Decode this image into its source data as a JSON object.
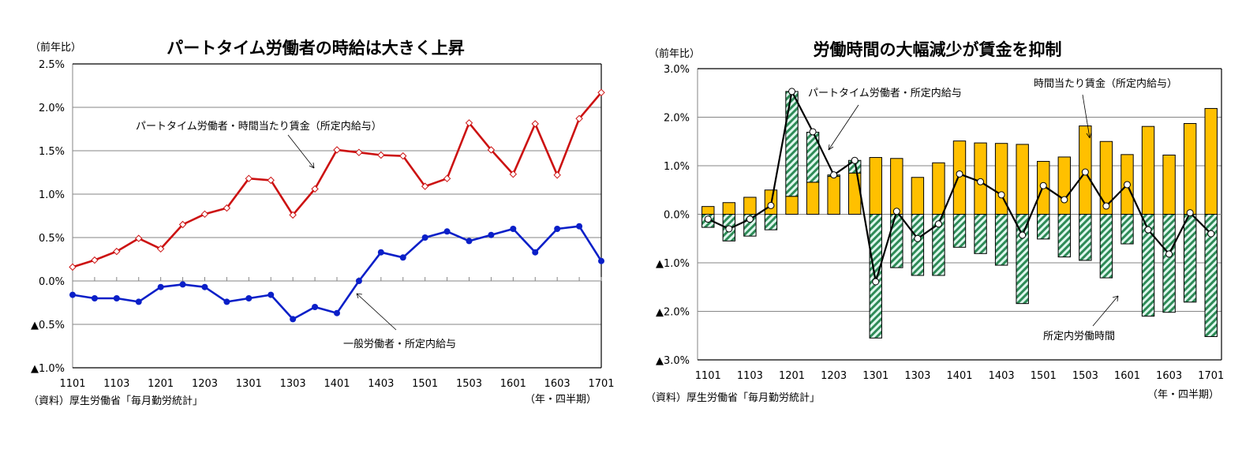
{
  "chart_data": [
    {
      "type": "line",
      "title": "パートタイム労働者の時給は大きく上昇",
      "ylabel": "（前年比）",
      "xlabel": "（年・四半期）",
      "source": "（資料）厚生労働省「毎月勤労統計」",
      "ylim": [
        -1.0,
        2.5
      ],
      "yticks": [
        2.5,
        2.0,
        1.5,
        1.0,
        0.5,
        0.0,
        -0.5,
        -1.0
      ],
      "ytick_labels": [
        "2.5%",
        "2.0%",
        "1.5%",
        "1.0%",
        "0.5%",
        "0.0%",
        "▲0.5%",
        "▲1.0%"
      ],
      "grid": true,
      "x": [
        "1101",
        "1102",
        "1103",
        "1104",
        "1201",
        "1202",
        "1203",
        "1204",
        "1301",
        "1302",
        "1303",
        "1304",
        "1401",
        "1402",
        "1403",
        "1404",
        "1501",
        "1502",
        "1503",
        "1504",
        "1601",
        "1602",
        "1603",
        "1604",
        "1701"
      ],
      "xtick_labels": [
        "1101",
        "1103",
        "1201",
        "1203",
        "1301",
        "1303",
        "1401",
        "1403",
        "1501",
        "1503",
        "1601",
        "1603",
        "1701"
      ],
      "series": [
        {
          "name": "パートタイム労働者・時間当たり賃金（所定内給与）",
          "color": "#cc1111",
          "marker": "diamond-open",
          "values": [
            0.16,
            0.24,
            0.34,
            0.49,
            0.37,
            0.65,
            0.77,
            0.84,
            1.18,
            1.16,
            0.76,
            1.06,
            1.51,
            1.48,
            1.45,
            1.44,
            1.09,
            1.18,
            1.82,
            1.51,
            1.23,
            1.81,
            1.22,
            1.87,
            2.17
          ]
        },
        {
          "name": "一般労働者・所定内給与",
          "color": "#0a1fc8",
          "marker": "circle-filled",
          "values": [
            -0.16,
            -0.2,
            -0.2,
            -0.24,
            -0.07,
            -0.04,
            -0.07,
            -0.24,
            -0.2,
            -0.16,
            -0.44,
            -0.3,
            -0.37,
            0.0,
            0.33,
            0.27,
            0.5,
            0.57,
            0.46,
            0.53,
            0.6,
            0.33,
            0.6,
            0.63,
            0.23
          ]
        }
      ],
      "annotations": [
        {
          "text": "パートタイム労働者・時間当たり賃金（所定内給与）",
          "series": 0
        },
        {
          "text": "一般労働者・所定内給与",
          "series": 1
        }
      ]
    },
    {
      "type": "bar",
      "title": "労働時間の大幅減少が賃金を抑制",
      "ylabel": "（前年比）",
      "xlabel": "（年・四半期）",
      "source": "（資料）厚生労働省「毎月勤労統計」",
      "ylim": [
        -3.0,
        3.0
      ],
      "yticks": [
        3.0,
        2.0,
        1.0,
        0.0,
        -1.0,
        -2.0,
        -3.0
      ],
      "ytick_labels": [
        "3.0%",
        "2.0%",
        "1.0%",
        "0.0%",
        "▲1.0%",
        "▲2.0%",
        "▲3.0%"
      ],
      "grid": true,
      "x": [
        "1101",
        "1102",
        "1103",
        "1104",
        "1201",
        "1202",
        "1203",
        "1204",
        "1301",
        "1302",
        "1303",
        "1304",
        "1401",
        "1402",
        "1403",
        "1404",
        "1501",
        "1502",
        "1503",
        "1504",
        "1601",
        "1602",
        "1603",
        "1604",
        "1701"
      ],
      "xtick_labels": [
        "1101",
        "1103",
        "1201",
        "1203",
        "1301",
        "1303",
        "1401",
        "1403",
        "1501",
        "1503",
        "1601",
        "1603",
        "1701"
      ],
      "series": [
        {
          "name": "時間当たり賃金（所定内給与）",
          "kind": "bar",
          "color": "#ffc000",
          "values": [
            0.16,
            0.24,
            0.35,
            0.5,
            0.37,
            0.66,
            0.78,
            0.85,
            1.17,
            1.15,
            0.76,
            1.06,
            1.51,
            1.47,
            1.46,
            1.44,
            1.09,
            1.18,
            1.82,
            1.5,
            1.23,
            1.81,
            1.22,
            1.87,
            2.18
          ]
        },
        {
          "name": "所定内労働時間",
          "kind": "bar-hatched",
          "color": "#2e8b57",
          "values": [
            -0.27,
            -0.55,
            -0.45,
            -0.32,
            2.16,
            1.03,
            0.03,
            0.26,
            -2.55,
            -1.1,
            -1.26,
            -1.26,
            -0.68,
            -0.81,
            -1.05,
            -1.84,
            -0.51,
            -0.88,
            -0.95,
            -1.31,
            -0.61,
            -2.1,
            -2.02,
            -1.81,
            -2.52
          ]
        },
        {
          "name": "パートタイム労働者・所定内給与",
          "kind": "line",
          "color": "#000000",
          "marker": "circle-open",
          "values": [
            -0.1,
            -0.3,
            -0.1,
            0.18,
            2.53,
            1.7,
            0.81,
            1.11,
            -1.39,
            0.06,
            -0.5,
            -0.2,
            0.83,
            0.67,
            0.4,
            -0.43,
            0.59,
            0.3,
            0.87,
            0.17,
            0.61,
            -0.32,
            -0.82,
            0.03,
            -0.4
          ]
        }
      ],
      "annotations": [
        {
          "text": "パートタイム労働者・所定内給与",
          "series": 2
        },
        {
          "text": "時間当たり賃金（所定内給与）",
          "series": 0
        },
        {
          "text": "所定内労働時間",
          "series": 1
        }
      ]
    }
  ]
}
